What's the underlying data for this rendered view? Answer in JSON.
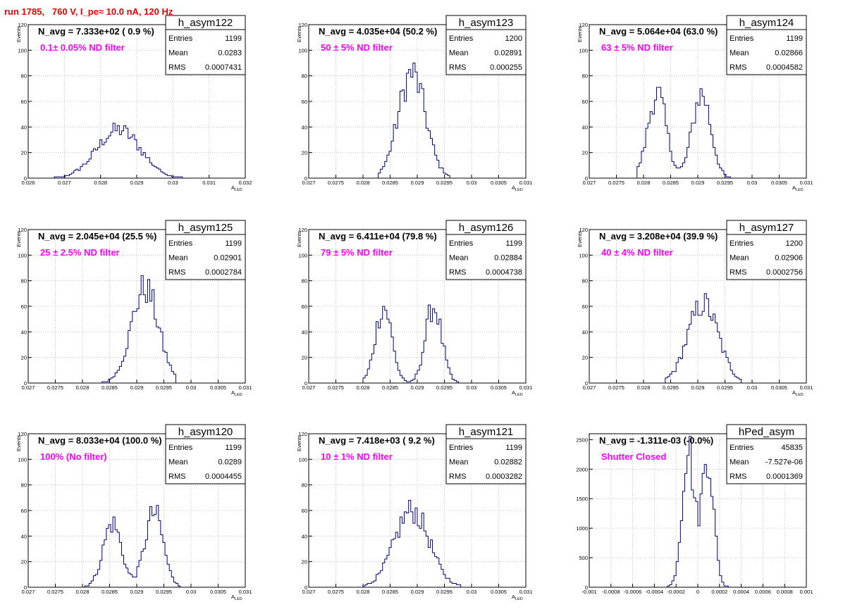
{
  "run_title": "run 1785,   760 V, I_pe≈ 10.0 nA, 120 Hz",
  "colors": {
    "histogram": "#000080",
    "filter_text": "#ff00ff",
    "run_title": "#ee0000",
    "grid": "#b8b8b8"
  },
  "chart_data": [
    {
      "type": "bar",
      "name": "h_asym122",
      "navg": "N_avg = 7.333e+02 ( 0.9 %)",
      "filter": "0.1± 0.05% ND filter",
      "stats": {
        "entries": "1199",
        "mean": "0.0283",
        "rms": "0.0007431"
      },
      "xlim": [
        0.026,
        0.032
      ],
      "ylim": [
        0,
        120
      ],
      "xticks": [
        "0.026",
        "0.027",
        "0.028",
        "0.029",
        "0.03",
        "0.031",
        "0.032"
      ],
      "yticks": [
        "0",
        "20",
        "40",
        "60",
        "80",
        "100",
        "120"
      ],
      "xlabel": "A",
      "xlabel_sub": "LED",
      "ylabel": "Events",
      "dist": [
        [
          0.0285,
          0.0006,
          38
        ]
      ],
      "range": [
        0.0262,
        0.0306
      ]
    },
    {
      "type": "bar",
      "name": "h_asym123",
      "navg": "N_avg = 4.035e+04 (50.2 %)",
      "filter": "50 ± 5% ND filter",
      "stats": {
        "entries": "1200",
        "mean": "0.02891",
        "rms": "0.000255"
      },
      "xlim": [
        0.027,
        0.031
      ],
      "ylim": [
        0,
        120
      ],
      "xticks": [
        "0.027",
        "0.0275",
        "0.028",
        "0.0285",
        "0.029",
        "0.0295",
        "0.03",
        "0.0305",
        "0.031"
      ],
      "yticks": [
        "0",
        "20",
        "40",
        "60",
        "80",
        "100",
        "120"
      ],
      "xlabel": "A",
      "xlabel_sub": "LED",
      "ylabel": "Events",
      "dist": [
        [
          0.0289,
          0.00025,
          82
        ]
      ],
      "range": [
        0.0283,
        0.0296
      ]
    },
    {
      "type": "bar",
      "name": "h_asym124",
      "navg": "N_avg = 5.064e+04 (63.0 %)",
      "filter": "63 ± 5% ND filter",
      "stats": {
        "entries": "1199",
        "mean": "0.02866",
        "rms": "0.0004582"
      },
      "xlim": [
        0.027,
        0.031
      ],
      "ylim": [
        0,
        120
      ],
      "xticks": [
        "0.027",
        "0.0275",
        "0.028",
        "0.0285",
        "0.029",
        "0.0295",
        "0.03",
        "0.0305",
        "0.031"
      ],
      "yticks": [
        "0",
        "20",
        "40",
        "60",
        "80",
        "100",
        "120"
      ],
      "xlabel": "A",
      "xlabel_sub": "LED",
      "ylabel": "Events",
      "dist": [
        [
          0.02825,
          0.00017,
          66
        ],
        [
          0.02907,
          0.00017,
          66
        ]
      ],
      "range": [
        0.0279,
        0.0296
      ]
    },
    {
      "type": "bar",
      "name": "h_asym125",
      "navg": "N_avg = 2.045e+04 (25.5 %)",
      "filter": "25 ± 2.5% ND filter",
      "stats": {
        "entries": "1199",
        "mean": "0.02901",
        "rms": "0.0002784"
      },
      "xlim": [
        0.027,
        0.031
      ],
      "ylim": [
        0,
        120
      ],
      "xticks": [
        "0.027",
        "0.0275",
        "0.028",
        "0.0285",
        "0.029",
        "0.0295",
        "0.03",
        "0.0305",
        "0.031"
      ],
      "yticks": [
        "0",
        "20",
        "40",
        "60",
        "80",
        "100",
        "120"
      ],
      "xlabel": "A",
      "xlabel_sub": "LED",
      "ylabel": "Events",
      "dist": [
        [
          0.02915,
          0.00025,
          74
        ]
      ],
      "range": [
        0.0283,
        0.0297
      ]
    },
    {
      "type": "bar",
      "name": "h_asym126",
      "navg": "N_avg = 6.411e+04 (79.8 %)",
      "filter": "79 ± 5% ND filter",
      "stats": {
        "entries": "1199",
        "mean": "0.02884",
        "rms": "0.0004738"
      },
      "xlim": [
        0.027,
        0.031
      ],
      "ylim": [
        0,
        120
      ],
      "xticks": [
        "0.027",
        "0.0275",
        "0.028",
        "0.0285",
        "0.029",
        "0.0295",
        "0.03",
        "0.0305",
        "0.031"
      ],
      "yticks": [
        "0",
        "20",
        "40",
        "60",
        "80",
        "100",
        "120"
      ],
      "xlabel": "A",
      "xlabel_sub": "LED",
      "ylabel": "Events",
      "dist": [
        [
          0.02838,
          0.00015,
          60
        ],
        [
          0.0293,
          0.00015,
          60
        ]
      ],
      "range": [
        0.028,
        0.0298
      ]
    },
    {
      "type": "bar",
      "name": "h_asym127",
      "navg": "N_avg = 3.208e+04 (39.9 %)",
      "filter": "40 ± 4% ND filter",
      "stats": {
        "entries": "1200",
        "mean": "0.02906",
        "rms": "0.0002756"
      },
      "xlim": [
        0.027,
        0.031
      ],
      "ylim": [
        0,
        120
      ],
      "xticks": [
        "0.027",
        "0.0275",
        "0.028",
        "0.0285",
        "0.029",
        "0.0295",
        "0.03",
        "0.0305",
        "0.031"
      ],
      "yticks": [
        "0",
        "20",
        "40",
        "60",
        "80",
        "100",
        "120"
      ],
      "xlabel": "A",
      "xlabel_sub": "LED",
      "ylabel": "Events",
      "dist": [
        [
          0.0291,
          0.00028,
          62
        ]
      ],
      "range": [
        0.0284,
        0.0298
      ]
    },
    {
      "type": "bar",
      "name": "h_asym120",
      "navg": "N_avg = 8.033e+04 (100.0 %)",
      "filter": "100% (No filter)",
      "stats": {
        "entries": "1199",
        "mean": "0.0289",
        "rms": "0.0004455"
      },
      "xlim": [
        0.027,
        0.031
      ],
      "ylim": [
        0,
        120
      ],
      "xticks": [
        "0.027",
        "0.0275",
        "0.028",
        "0.0285",
        "0.029",
        "0.0295",
        "0.03",
        "0.0305",
        "0.031"
      ],
      "yticks": [
        "0",
        "20",
        "40",
        "60",
        "80",
        "100",
        "120"
      ],
      "xlabel": "A",
      "xlabel_sub": "LED",
      "ylabel": "Events",
      "dist": [
        [
          0.02855,
          0.00017,
          50
        ],
        [
          0.02932,
          0.00017,
          58
        ]
      ],
      "range": [
        0.028,
        0.0298
      ]
    },
    {
      "type": "bar",
      "name": "h_asym121",
      "navg": "N_avg = 7.418e+03 ( 9.2 %)",
      "filter": "10 ± 1% ND filter",
      "stats": {
        "entries": "1199",
        "mean": "0.02882",
        "rms": "0.0003282"
      },
      "xlim": [
        0.027,
        0.031
      ],
      "ylim": [
        0,
        120
      ],
      "xticks": [
        "0.027",
        "0.0275",
        "0.028",
        "0.0285",
        "0.029",
        "0.0295",
        "0.03",
        "0.0305",
        "0.031"
      ],
      "yticks": [
        "0",
        "20",
        "40",
        "60",
        "80",
        "100",
        "120"
      ],
      "xlabel": "A",
      "xlabel_sub": "LED",
      "ylabel": "Events",
      "dist": [
        [
          0.0289,
          0.00032,
          60
        ]
      ],
      "range": [
        0.028,
        0.0298
      ]
    },
    {
      "type": "bar",
      "name": "hPed_asym",
      "navg": "N_avg = -1.311e-03 (-0.0%)",
      "filter": "Shutter Closed",
      "stats": {
        "entries": "45835",
        "mean": "-7.527e-06",
        "rms": "0.0001369"
      },
      "xlim": [
        -0.001,
        0.001
      ],
      "ylim": [
        0,
        2600
      ],
      "xticks": [
        "-0.001",
        "-0.0008",
        "-0.0006",
        "-0.0004",
        "-0.0002",
        "0",
        "0.0002",
        "0.0004",
        "0.0006",
        "0.0008",
        "0.001"
      ],
      "yticks": [
        "0",
        "500",
        "1000",
        "1500",
        "2000",
        "2500"
      ],
      "xlabel": "",
      "xlabel_sub": "",
      "ylabel": "",
      "dist": [
        [
          -9e-05,
          5.5e-05,
          2400
        ],
        [
          9e-05,
          5.5e-05,
          2250
        ]
      ],
      "range": [
        -0.00035,
        0.00035
      ]
    }
  ]
}
